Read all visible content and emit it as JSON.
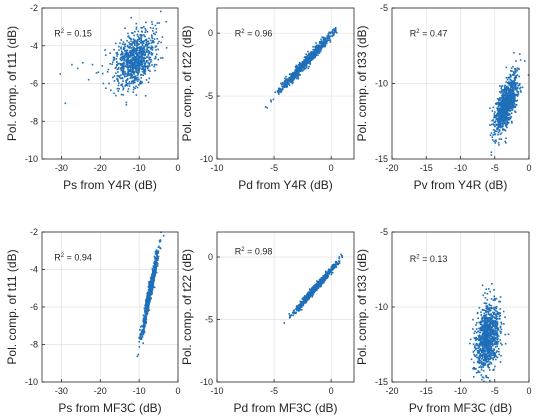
{
  "chart_data": [
    {
      "type": "scatter",
      "xlabel": "Ps from Y4R (dB)",
      "ylabel": "Pol. comp. of t11 (dB)",
      "xlim": [
        -35,
        0
      ],
      "ylim": [
        -10,
        -2
      ],
      "xticks": [
        -30,
        -20,
        -10,
        0
      ],
      "yticks": [
        -10,
        -8,
        -6,
        -4,
        -2
      ],
      "r2_label": "R",
      "r2_value": " = 0.15",
      "color": "#1f6fb8",
      "grid": true,
      "cloud": {
        "cx": -11,
        "cy": -4.7,
        "sx": 2.6,
        "sy": 0.75,
        "rho": 0.35,
        "n": 900
      },
      "outliers": [
        [
          -30.3,
          -5.5
        ],
        [
          -29.0,
          -7.05
        ],
        [
          -27.3,
          -5.0
        ],
        [
          -25.8,
          -5.2
        ],
        [
          -24.5,
          -4.9
        ],
        [
          -23.0,
          -5.8
        ],
        [
          -22.0,
          -5.0
        ],
        [
          -20.5,
          -5.4
        ],
        [
          -19.2,
          -6.0
        ],
        [
          -18.6,
          -4.5
        ]
      ]
    },
    {
      "type": "scatter",
      "xlabel": "Pd from Y4R (dB)",
      "ylabel": "Pol. comp. of t22 (dB)",
      "xlim": [
        -10,
        2
      ],
      "ylim": [
        -10,
        2
      ],
      "xticks": [
        -10,
        -5,
        0
      ],
      "yticks": [
        -10,
        -5,
        0
      ],
      "r2_label": "R",
      "r2_value": " = 0.96",
      "color": "#1f6fb8",
      "grid": true,
      "cloud": {
        "cx": -2.2,
        "cy": -2.3,
        "sx": 1.25,
        "sy": 1.25,
        "rho": 0.985,
        "n": 800,
        "xmax": 0.5
      },
      "outliers": []
    },
    {
      "type": "scatter",
      "xlabel": "Pv from Y4R (dB)",
      "ylabel": "Pol. comp. of t33 (dB)",
      "xlim": [
        -20,
        0
      ],
      "ylim": [
        -15,
        -5
      ],
      "xticks": [
        -20,
        -15,
        -10,
        -5,
        0
      ],
      "yticks": [
        -15,
        -10,
        -5
      ],
      "r2_label": "R",
      "r2_value": " = 0.47",
      "color": "#1f6fb8",
      "grid": true,
      "cloud": {
        "cx": -3.3,
        "cy": -11.4,
        "sx": 0.85,
        "sy": 0.95,
        "rho": 0.68,
        "n": 1000
      },
      "outliers": []
    },
    {
      "type": "scatter",
      "xlabel": "Ps from MF3C (dB)",
      "ylabel": "Pol. comp. of t11 (dB)",
      "xlim": [
        -35,
        0
      ],
      "ylim": [
        -10,
        -2
      ],
      "xticks": [
        -30,
        -20,
        -10,
        0
      ],
      "yticks": [
        -10,
        -8,
        -6,
        -4,
        -2
      ],
      "r2_label": "R",
      "r2_value": " = 0.94",
      "color": "#1f6fb8",
      "grid": true,
      "cloud": {
        "cx": -7.2,
        "cy": -5.2,
        "sx": 1.1,
        "sy": 1.15,
        "rho": 0.97,
        "n": 800
      },
      "outliers": []
    },
    {
      "type": "scatter",
      "xlabel": "Pd from MF3C (dB)",
      "ylabel": "Pol. comp. of t22 (dB)",
      "xlim": [
        -10,
        2
      ],
      "ylim": [
        -10,
        2
      ],
      "xticks": [
        -10,
        -5,
        0
      ],
      "yticks": [
        -10,
        -5,
        0
      ],
      "r2_label": "R",
      "r2_value": " = 0.98",
      "color": "#1f6fb8",
      "grid": true,
      "cloud": {
        "cx": -1.3,
        "cy": -2.4,
        "sx": 0.95,
        "sy": 1.0,
        "rho": 0.99,
        "n": 800,
        "xmax": 1.0
      },
      "outliers": []
    },
    {
      "type": "scatter",
      "xlabel": "Pv from MF3C (dB)",
      "ylabel": "Pol. comp. of t33 (dB)",
      "xlim": [
        -20,
        0
      ],
      "ylim": [
        -15,
        -5
      ],
      "xticks": [
        -20,
        -15,
        -10,
        -5,
        0
      ],
      "yticks": [
        -15,
        -10,
        -5
      ],
      "r2_label": "R",
      "r2_value": " = 0.13",
      "color": "#1f6fb8",
      "grid": true,
      "cloud": {
        "cx": -6.0,
        "cy": -12.0,
        "sx": 0.85,
        "sy": 1.1,
        "rho": 0.3,
        "n": 1000
      },
      "outliers": []
    }
  ]
}
